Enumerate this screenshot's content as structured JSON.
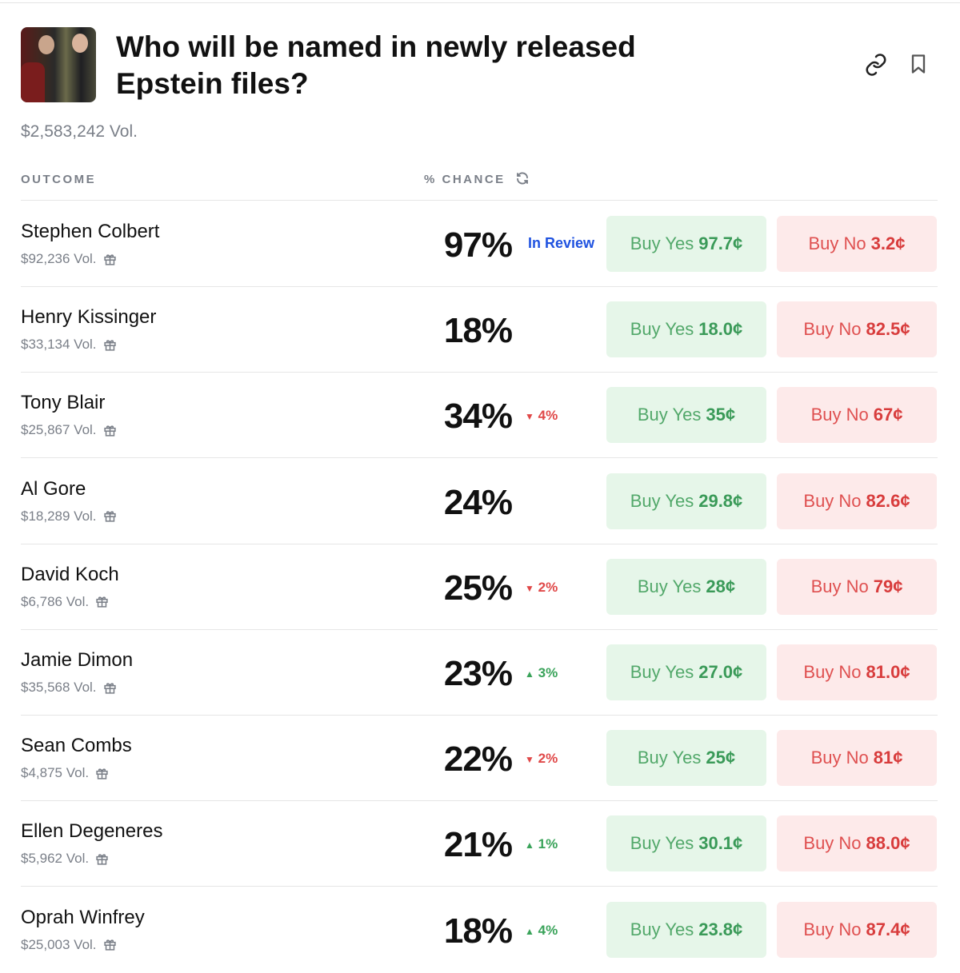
{
  "market": {
    "title": "Who will be named in newly released Epstein files?",
    "volume": "$2,583,242 Vol."
  },
  "header": {
    "outcome": "OUTCOME",
    "chance": "% CHANCE"
  },
  "colors": {
    "yes": "#3a9a58",
    "no": "#d83c3c",
    "review": "#1f52e0"
  },
  "outcomes": [
    {
      "name": "Stephen Colbert",
      "volume": "$92,236 Vol.",
      "chance": "97%",
      "status": "In Review",
      "change": "",
      "dir": "",
      "yes_label": "Buy Yes",
      "yes_price": "97.7¢",
      "no_label": "Buy No",
      "no_price": "3.2¢"
    },
    {
      "name": "Henry Kissinger",
      "volume": "$33,134 Vol.",
      "chance": "18%",
      "status": "",
      "change": "",
      "dir": "",
      "yes_label": "Buy Yes",
      "yes_price": "18.0¢",
      "no_label": "Buy No",
      "no_price": "82.5¢"
    },
    {
      "name": "Tony Blair",
      "volume": "$25,867 Vol.",
      "chance": "34%",
      "status": "",
      "change": "4%",
      "dir": "down",
      "yes_label": "Buy Yes",
      "yes_price": "35¢",
      "no_label": "Buy No",
      "no_price": "67¢"
    },
    {
      "name": "Al Gore",
      "volume": "$18,289 Vol.",
      "chance": "24%",
      "status": "",
      "change": "",
      "dir": "",
      "yes_label": "Buy Yes",
      "yes_price": "29.8¢",
      "no_label": "Buy No",
      "no_price": "82.6¢"
    },
    {
      "name": "David Koch",
      "volume": "$6,786 Vol.",
      "chance": "25%",
      "status": "",
      "change": "2%",
      "dir": "down",
      "yes_label": "Buy Yes",
      "yes_price": "28¢",
      "no_label": "Buy No",
      "no_price": "79¢"
    },
    {
      "name": "Jamie Dimon",
      "volume": "$35,568 Vol.",
      "chance": "23%",
      "status": "",
      "change": "3%",
      "dir": "up",
      "yes_label": "Buy Yes",
      "yes_price": "27.0¢",
      "no_label": "Buy No",
      "no_price": "81.0¢"
    },
    {
      "name": "Sean Combs",
      "volume": "$4,875 Vol.",
      "chance": "22%",
      "status": "",
      "change": "2%",
      "dir": "down",
      "yes_label": "Buy Yes",
      "yes_price": "25¢",
      "no_label": "Buy No",
      "no_price": "81¢"
    },
    {
      "name": "Ellen Degeneres",
      "volume": "$5,962 Vol.",
      "chance": "21%",
      "status": "",
      "change": "1%",
      "dir": "up",
      "yes_label": "Buy Yes",
      "yes_price": "30.1¢",
      "no_label": "Buy No",
      "no_price": "88.0¢"
    },
    {
      "name": "Oprah Winfrey",
      "volume": "$25,003 Vol.",
      "chance": "18%",
      "status": "",
      "change": "4%",
      "dir": "up",
      "yes_label": "Buy Yes",
      "yes_price": "23.8¢",
      "no_label": "Buy No",
      "no_price": "87.4¢"
    }
  ]
}
